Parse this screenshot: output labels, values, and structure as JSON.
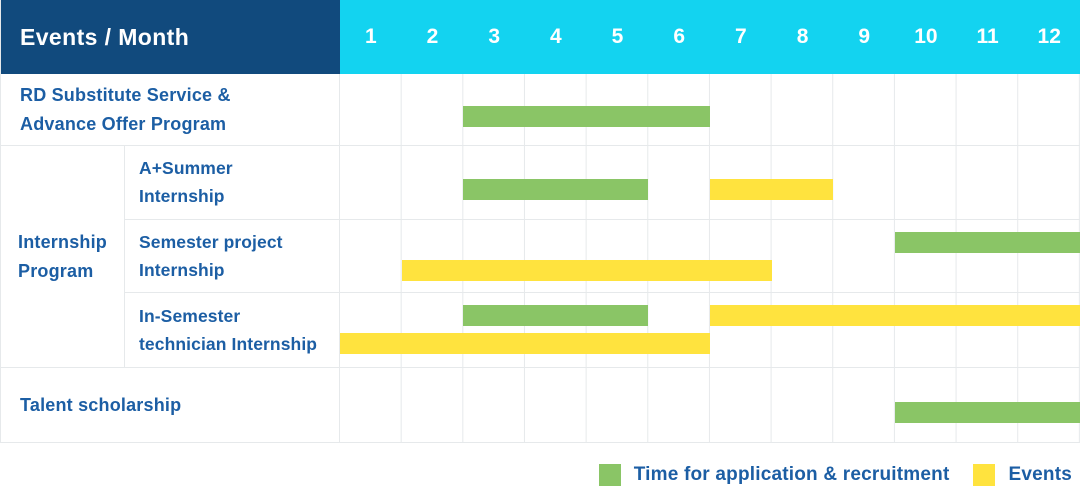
{
  "header": {
    "title": "Events / Month",
    "months": [
      "1",
      "2",
      "3",
      "4",
      "5",
      "6",
      "7",
      "8",
      "9",
      "10",
      "11",
      "12"
    ]
  },
  "group_column": {
    "label": "Internship Program",
    "label_lines": [
      "Internship",
      "Program"
    ]
  },
  "legend": {
    "items": [
      {
        "kind": "application",
        "label": "Time for application & recruitment"
      },
      {
        "kind": "event",
        "label": "Events"
      }
    ]
  },
  "colors": {
    "header_bg": "#114a7d",
    "months_bg": "#13d3f0",
    "bar_green": "#8ac566",
    "bar_yellow": "#ffe33e",
    "text_blue": "#1c5ea4",
    "grid_line": "#e6e9eb"
  },
  "chart_data": {
    "type": "gantt",
    "title": "Events / Month",
    "x_categories": [
      1,
      2,
      3,
      4,
      5,
      6,
      7,
      8,
      9,
      10,
      11,
      12
    ],
    "x_range": [
      1,
      12
    ],
    "grid": true,
    "legend_position": "bottom-right",
    "series_kinds": {
      "application": "Time for application & recruitment",
      "event": "Events"
    },
    "months_total": 12,
    "rows": [
      {
        "event": "RD Substitute Service & Advance Offer Program",
        "label_lines": [
          "RD Substitute Service &",
          "Advance Offer Program"
        ],
        "group": null,
        "bars": [
          {
            "kind": "application",
            "start_month": 3,
            "end_month": 6,
            "slot": "single"
          }
        ]
      },
      {
        "event": "A+Summer Internship",
        "label_lines": [
          "A+Summer",
          "Internship"
        ],
        "group": "Internship Program",
        "bars": [
          {
            "kind": "application",
            "start_month": 3,
            "end_month": 5,
            "slot": "single"
          },
          {
            "kind": "event",
            "start_month": 7,
            "end_month": 8,
            "slot": "single"
          }
        ]
      },
      {
        "event": "Semester project Internship",
        "label_lines": [
          "Semester project",
          "Internship"
        ],
        "group": "Internship Program",
        "bars": [
          {
            "kind": "application",
            "start_month": 10,
            "end_month": 12,
            "slot": "upper"
          },
          {
            "kind": "event",
            "start_month": 2,
            "end_month": 7,
            "slot": "lower"
          }
        ]
      },
      {
        "event": "In-Semester technician Internship",
        "label_lines": [
          "In-Semester",
          "technician Internship"
        ],
        "group": "Internship Program",
        "bars": [
          {
            "kind": "application",
            "start_month": 3,
            "end_month": 5,
            "slot": "upper"
          },
          {
            "kind": "event",
            "start_month": 7,
            "end_month": 12,
            "slot": "upper"
          },
          {
            "kind": "event",
            "start_month": 1,
            "end_month": 6,
            "slot": "lower"
          }
        ]
      },
      {
        "event": "Talent scholarship",
        "label_lines": [
          "Talent scholarship"
        ],
        "group": null,
        "bars": [
          {
            "kind": "application",
            "start_month": 10,
            "end_month": 12,
            "slot": "single"
          }
        ]
      }
    ]
  }
}
